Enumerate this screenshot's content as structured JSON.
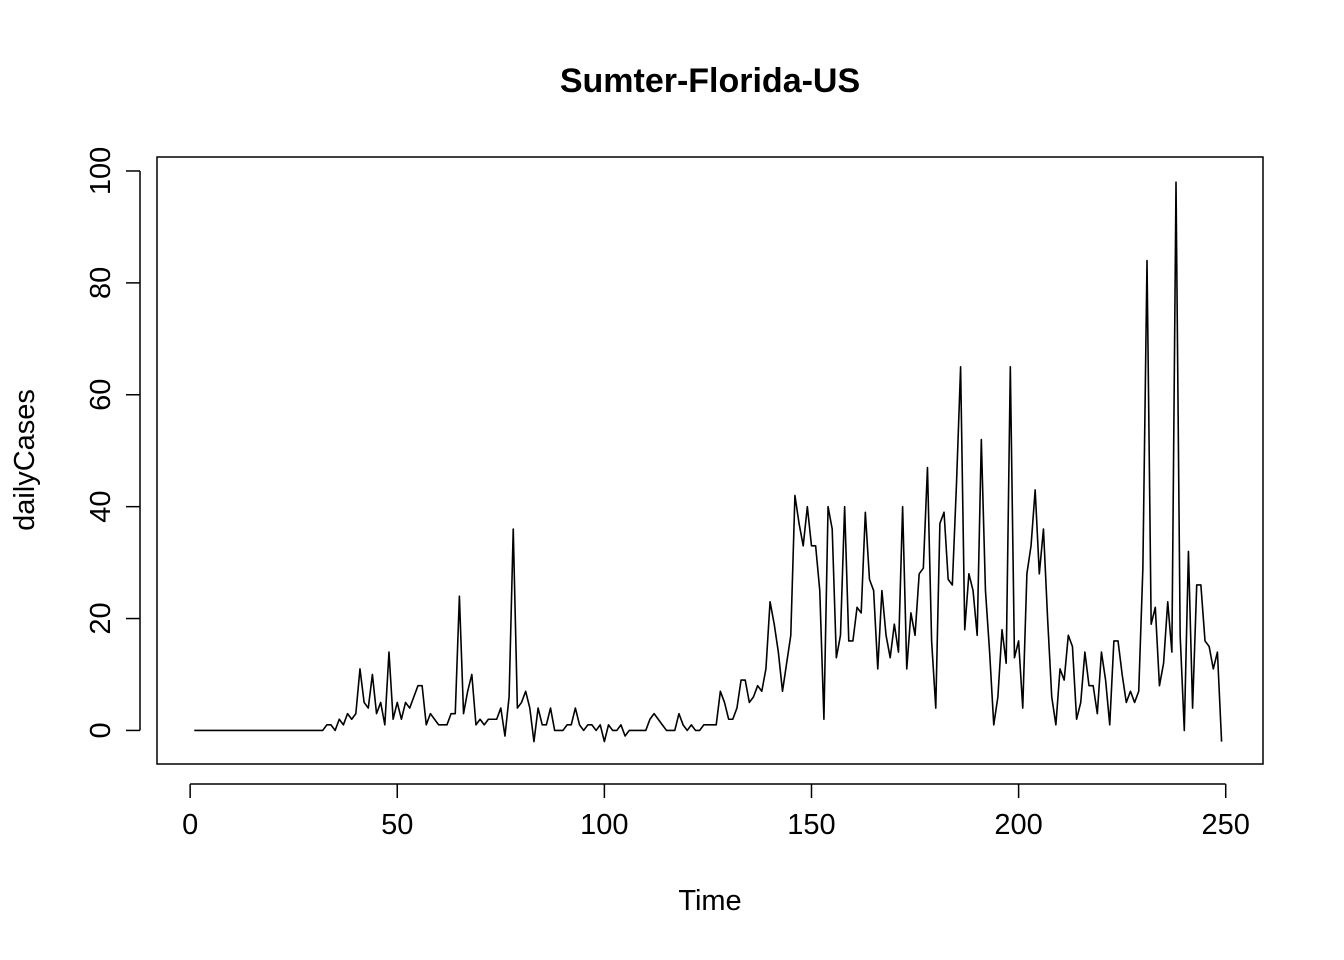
{
  "chart_data": {
    "type": "line",
    "title": "Sumter-Florida-US",
    "xlabel": "Time",
    "ylabel": "dailyCases",
    "xlim": [
      -8,
      259
    ],
    "ylim": [
      -6.0,
      102.5
    ],
    "xticks": [
      0,
      50,
      100,
      150,
      200,
      250
    ],
    "yticks": [
      0,
      20,
      40,
      60,
      80,
      100
    ],
    "grid": false,
    "legend": "none",
    "line_color": "#000000",
    "series": [
      {
        "x_start": 1,
        "values": [
          0,
          0,
          0,
          0,
          0,
          0,
          0,
          0,
          0,
          0,
          0,
          0,
          0,
          0,
          0,
          0,
          0,
          0,
          0,
          0,
          0,
          0,
          0,
          0,
          0,
          0,
          0,
          0,
          0,
          0,
          0,
          0,
          1,
          1,
          0,
          2,
          1,
          3,
          2,
          3,
          11,
          5,
          4,
          10,
          3,
          5,
          1,
          14,
          2,
          5,
          2,
          5,
          4,
          6,
          8,
          8,
          1,
          3,
          2,
          1,
          1,
          1,
          3,
          3,
          24,
          3,
          7,
          10,
          1,
          2,
          1,
          2,
          2,
          2,
          4,
          -1,
          6,
          36,
          4,
          5,
          7,
          4,
          -2,
          4,
          1,
          1,
          4,
          0,
          0,
          0,
          1,
          1,
          4,
          1,
          0,
          1,
          1,
          0,
          1,
          -2,
          1,
          0,
          0,
          1,
          -1,
          0,
          0,
          0,
          0,
          0,
          2,
          3,
          2,
          1,
          0,
          0,
          0,
          3,
          1,
          0,
          1,
          0,
          0,
          1,
          1,
          1,
          1,
          7,
          5,
          2,
          2,
          4,
          9,
          9,
          5,
          6,
          8,
          7,
          11,
          23,
          19,
          14,
          7,
          12,
          17,
          42,
          37,
          33,
          40,
          33,
          33,
          25,
          2,
          40,
          36,
          13,
          17,
          40,
          16,
          16,
          22,
          21,
          39,
          27,
          25,
          11,
          25,
          17,
          13,
          19,
          14,
          40,
          11,
          21,
          17,
          28,
          29,
          47,
          16,
          4,
          37,
          39,
          27,
          26,
          44,
          65,
          18,
          28,
          25,
          17,
          52,
          25,
          14,
          1,
          6,
          18,
          12,
          65,
          13,
          16,
          4,
          28,
          33,
          43,
          28,
          36,
          20,
          6,
          1,
          11,
          9,
          17,
          15,
          2,
          5,
          14,
          8,
          8,
          3,
          14,
          9,
          1,
          16,
          16,
          10,
          5,
          7,
          5,
          7,
          29,
          84,
          19,
          22,
          8,
          12,
          23,
          14,
          98,
          17,
          0,
          32,
          4,
          26,
          26,
          16,
          15,
          11,
          14,
          -2
        ]
      }
    ]
  }
}
